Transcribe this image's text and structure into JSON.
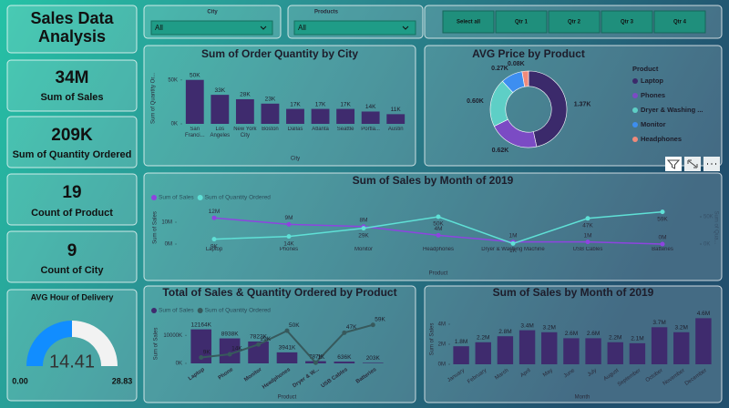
{
  "header": {
    "title": "Sales Data Analysis"
  },
  "kpis": [
    {
      "value": "34M",
      "label": "Sum of Sales"
    },
    {
      "value": "209K",
      "label": "Sum of Quantity Ordered"
    },
    {
      "value": "19",
      "label": "Count of Product"
    },
    {
      "value": "9",
      "label": "Count of City"
    }
  ],
  "gauge": {
    "title": "AVG Hour of Delivery",
    "value": 14.41,
    "min": {
      "value": 0,
      "label": "0.00"
    },
    "max": 28.83,
    "color": "#118dff"
  },
  "slicers": [
    {
      "label": "City",
      "value": "All"
    },
    {
      "label": "Products",
      "value": "All"
    }
  ],
  "buttons": [
    "Select all",
    "Qtr 1",
    "Qtr 2",
    "Qtr 3",
    "Qtr 4"
  ],
  "chart_data": [
    {
      "type": "bar",
      "title": "Sum of Order Quantity by City",
      "x_label": "City",
      "y_label": "Sum of Quantity Or...",
      "categories": [
        "San Franci...",
        "Los Angeles",
        "New York City",
        "Boston",
        "Dallas",
        "Atlanta",
        "Seattle",
        "Portla...",
        "Austin"
      ],
      "values": [
        50000,
        33000,
        28000,
        23000,
        17000,
        17000,
        17000,
        14000,
        11000
      ],
      "value_labels": [
        "50K",
        "33K",
        "28K",
        "23K",
        "17K",
        "17K",
        "17K",
        "14K",
        "11K"
      ],
      "color": "#3f2b6e",
      "ylim": [
        0,
        58000
      ],
      "yticks": [
        {
          "value": 0,
          "label": "0K"
        },
        {
          "value": 50000,
          "label": "50K"
        }
      ]
    },
    {
      "type": "pie",
      "title": "AVG Price by Product",
      "legend_title": "Product",
      "donut": true,
      "categories": [
        "Laptop",
        "Phones",
        "Dryer & Washing ...",
        "Monitor",
        "Headphones"
      ],
      "values": [
        1370,
        620,
        600,
        270,
        80
      ],
      "value_labels": [
        "1.37K",
        "0.62K",
        "0.60K",
        "0.27K",
        "0.08K"
      ],
      "colors": [
        "#3b2a6b",
        "#7b4bc4",
        "#5ecfc6",
        "#3d8ef0",
        "#f08a7a"
      ]
    },
    {
      "type": "line",
      "title": "Sum of Sales by Month of 2019",
      "x_label": "Product",
      "y_label": "Sum of Sales",
      "y2_label": "Sum of Qua...",
      "legend": "top-left",
      "categories": [
        "Laptop",
        "Phones",
        "Monitor",
        "Headphones",
        "Dryer & Washing Machine",
        "USB Cables",
        "Batteries"
      ],
      "series": [
        {
          "name": "Sum of Sales",
          "color": "#8e44e0",
          "values": [
            12000000,
            9000000,
            8000000,
            4000000,
            1000000,
            1000000,
            0
          ],
          "value_labels": [
            "12M",
            "9M",
            "8M",
            "4M",
            "1M",
            "1M",
            "0M"
          ]
        },
        {
          "name": "Sum of Quantity Ordered",
          "color": "#5fe0d6",
          "axis": "y2",
          "values": [
            9000,
            14000,
            29000,
            50000,
            1000,
            47000,
            59000
          ],
          "value_labels": [
            "9K",
            "14K",
            "29K",
            "50K",
            "1K",
            "47K",
            "59K"
          ]
        }
      ],
      "ylim": [
        0,
        15000000
      ],
      "yticks": [
        {
          "value": 0,
          "label": "0M"
        },
        {
          "value": 10000000,
          "label": "10M"
        }
      ],
      "y2lim": [
        0,
        60000
      ],
      "y2ticks": [
        {
          "value": 0,
          "label": "0K"
        },
        {
          "value": 50000,
          "label": "50K"
        }
      ]
    },
    {
      "type": "combo",
      "title": "Total of Sales & Quantity Ordered by Product",
      "x_label": "Product",
      "y_label": "Sum of Sales",
      "legend": "top-left",
      "categories": [
        "Laptop",
        "Phone",
        "Monitor",
        "Headphones",
        "Dryer & W...",
        "USB Cables",
        "Batteries"
      ],
      "series": [
        {
          "name": "Sum of Sales",
          "type": "bar",
          "color": "#3f2b6e",
          "values": [
            12164000,
            8938000,
            7822000,
            3941000,
            787000,
            636000,
            203000
          ],
          "value_labels": [
            "12164K",
            "8938K",
            "7822K",
            "3941K",
            "787K",
            "636K",
            "203K"
          ]
        },
        {
          "name": "Sum of Quantity Ordered",
          "type": "line",
          "axis": "y2",
          "color": "#37595c",
          "values": [
            9000,
            14000,
            29000,
            50000,
            1000,
            47000,
            59000
          ],
          "value_labels": [
            "9K",
            "14K",
            "29K",
            "50K",
            "1K",
            "47K",
            "59K"
          ]
        }
      ],
      "ylim": [
        0,
        14000000
      ],
      "yticks": [
        {
          "value": 0,
          "label": "0K"
        },
        {
          "value": 10000000,
          "label": "10000K"
        }
      ],
      "y2lim": [
        0,
        60000
      ]
    },
    {
      "type": "bar",
      "title": "Sum of Sales by Month of 2019",
      "x_label": "Month",
      "y_label": "Sum of Sales",
      "rotate_labels": true,
      "categories": [
        "January",
        "February",
        "March",
        "April",
        "May",
        "June",
        "July",
        "August",
        "September",
        "October",
        "November",
        "December"
      ],
      "values": [
        1800000,
        2200000,
        2800000,
        3400000,
        3200000,
        2600000,
        2600000,
        2200000,
        2100000,
        3700000,
        3200000,
        4600000
      ],
      "value_labels": [
        "1.8M",
        "2.2M",
        "2.8M",
        "3.4M",
        "3.2M",
        "2.6M",
        "2.6M",
        "2.2M",
        "2.1M",
        "3.7M",
        "3.2M",
        "4.6M"
      ],
      "color": "#3f2b6e",
      "ylim": [
        0,
        5000000
      ],
      "yticks": [
        {
          "value": 0,
          "label": "0M"
        },
        {
          "value": 2000000,
          "label": "2M"
        },
        {
          "value": 4000000,
          "label": "4M"
        }
      ]
    }
  ]
}
